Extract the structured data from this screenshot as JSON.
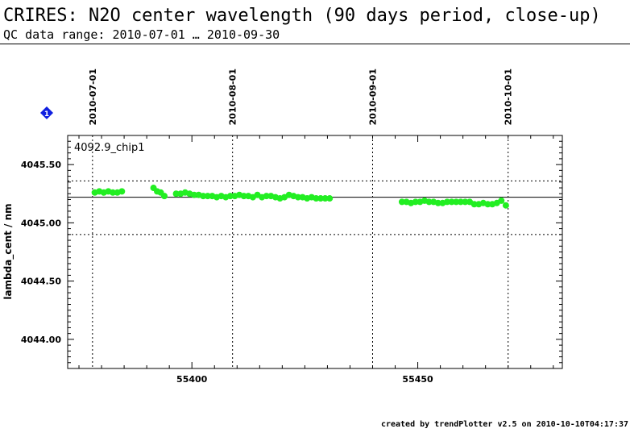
{
  "header": {
    "title": "CRIRES: N2O center wavelength (90 days period, close-up)",
    "subtitle": "QC data range: 2010-07-01 … 2010-09-30"
  },
  "footer": {
    "credit": "created by trendPlotter v2.5 on 2010-10-10T04:17:37"
  },
  "marker": {
    "label": "1",
    "color": "#1020e0"
  },
  "chart_data": {
    "type": "scatter",
    "panel_label": "4092.9_chip1",
    "xlabel": "",
    "ylabel": "lambda_cent / nm",
    "xlim": [
      55372.5,
      55482
    ],
    "ylim": [
      4043.75,
      4045.75
    ],
    "x_ticks": [
      55400,
      55450
    ],
    "y_ticks": [
      4044.0,
      4044.5,
      4045.0,
      4045.5
    ],
    "y_tick_labels": [
      "4044.00",
      "4044.50",
      "4045.00",
      "4045.50"
    ],
    "date_markers": [
      {
        "label": "2010-07-01",
        "x": 55378
      },
      {
        "label": "2010-08-01",
        "x": 55409
      },
      {
        "label": "2010-09-01",
        "x": 55440
      },
      {
        "label": "2010-10-01",
        "x": 55470
      }
    ],
    "reference_lines": {
      "mean": 4045.22,
      "upper": 4045.36,
      "lower": 4044.9
    },
    "grid": false,
    "point_color": "#22ee22",
    "series": [
      {
        "x": [
          55378.5,
          55379.5,
          55380.5,
          55381.5,
          55382.5,
          55383.5,
          55384.5,
          55391.5,
          55392.3,
          55393.1,
          55393.9,
          55396.5,
          55397.5,
          55398.5,
          55399.5,
          55400.5,
          55401.5,
          55402.5,
          55403.5,
          55404.5,
          55405.5,
          55406.5,
          55407.5,
          55408.5,
          55409.5,
          55410.5,
          55411.5,
          55412.5,
          55413.5,
          55414.5,
          55415.5,
          55416.5,
          55417.5,
          55418.5,
          55419.5,
          55420.5,
          55421.5,
          55422.5,
          55423.5,
          55424.5,
          55425.5,
          55426.5,
          55427.5,
          55428.5,
          55429.5,
          55430.5,
          55446.5,
          55447.5,
          55448.5,
          55449.5,
          55450.5,
          55451.5,
          55452.5,
          55453.5,
          55454.5,
          55455.5,
          55456.5,
          55457.5,
          55458.5,
          55459.5,
          55460.5,
          55461.5,
          55462.5,
          55463.5,
          55464.5,
          55465.5,
          55466.5,
          55467.5,
          55468.5,
          55469.5
        ],
        "y": [
          4045.26,
          4045.27,
          4045.26,
          4045.27,
          4045.26,
          4045.26,
          4045.27,
          4045.3,
          4045.27,
          4045.26,
          4045.23,
          4045.25,
          4045.25,
          4045.26,
          4045.25,
          4045.24,
          4045.24,
          4045.23,
          4045.23,
          4045.23,
          4045.22,
          4045.23,
          4045.22,
          4045.23,
          4045.23,
          4045.24,
          4045.23,
          4045.23,
          4045.22,
          4045.24,
          4045.22,
          4045.23,
          4045.23,
          4045.22,
          4045.21,
          4045.22,
          4045.24,
          4045.23,
          4045.22,
          4045.22,
          4045.21,
          4045.22,
          4045.21,
          4045.21,
          4045.21,
          4045.21,
          4045.18,
          4045.18,
          4045.17,
          4045.18,
          4045.18,
          4045.19,
          4045.18,
          4045.18,
          4045.17,
          4045.17,
          4045.18,
          4045.18,
          4045.18,
          4045.18,
          4045.18,
          4045.18,
          4045.16,
          4045.16,
          4045.17,
          4045.16,
          4045.16,
          4045.17,
          4045.19,
          4045.15
        ]
      }
    ]
  }
}
